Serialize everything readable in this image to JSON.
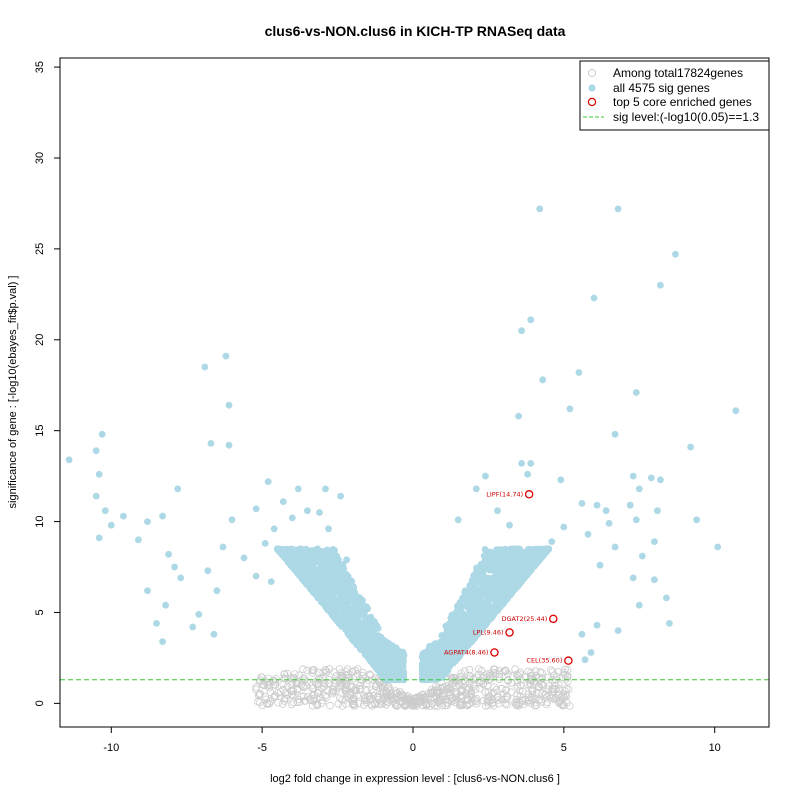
{
  "chart_data": {
    "type": "scatter",
    "title": "clus6-vs-NON.clus6 in KICH-TP RNASeq data",
    "xlabel": "log2 fold change in expression level : [clus6-vs-NON.clus6 ]",
    "ylabel": "significance of gene : [-log10(ebayes_fit$p.val) ]",
    "xlim": [
      -11.7,
      11.8
    ],
    "ylim": [
      -1.3,
      35.5
    ],
    "xticks": [
      -10,
      -5,
      0,
      5,
      10
    ],
    "yticks": [
      0,
      5,
      10,
      15,
      20,
      25,
      30,
      35
    ],
    "grid": false,
    "legend_position": "top-right",
    "legend": [
      {
        "label": "Among total17824genes",
        "marker": "open-circle",
        "color": "#cccccc"
      },
      {
        "label": "all 4575 sig genes",
        "marker": "filled-circle",
        "color": "#add8e6"
      },
      {
        "label": "top 5 core enriched genes",
        "marker": "open-circle",
        "color": "#dd0000"
      },
      {
        "label": "sig level:(-log10(0.05)==1.3",
        "marker": "dashed-line",
        "color": "#33cc33"
      }
    ],
    "sig_level": 1.3,
    "colors": {
      "background_genes": "#cccccc",
      "sig_genes": "#add8e6",
      "top_genes": "#dd0000",
      "sig_line": "#33cc33"
    },
    "background_cloud": {
      "description": "non-significant genes form a V-shaped grey cloud around x=0, y<2",
      "count_drawn": 700
    },
    "sig_points": [
      [
        -11.4,
        13.4
      ],
      [
        -10.5,
        13.9
      ],
      [
        -10.3,
        14.8
      ],
      [
        -10.4,
        12.6
      ],
      [
        -10.5,
        11.4
      ],
      [
        -10.2,
        10.6
      ],
      [
        -10.4,
        9.1
      ],
      [
        -10.0,
        9.8
      ],
      [
        -9.6,
        10.3
      ],
      [
        -9.1,
        9.0
      ],
      [
        -8.8,
        10.0
      ],
      [
        -8.3,
        10.3
      ],
      [
        -7.8,
        11.8
      ],
      [
        -8.1,
        8.2
      ],
      [
        -7.9,
        7.5
      ],
      [
        -7.7,
        6.9
      ],
      [
        -8.8,
        6.2
      ],
      [
        -8.2,
        5.4
      ],
      [
        -8.5,
        4.4
      ],
      [
        -8.3,
        3.4
      ],
      [
        -6.9,
        18.5
      ],
      [
        -6.2,
        19.1
      ],
      [
        -6.1,
        16.4
      ],
      [
        -6.7,
        14.3
      ],
      [
        -6.1,
        14.2
      ],
      [
        -6.0,
        10.1
      ],
      [
        -6.3,
        8.6
      ],
      [
        -6.8,
        7.3
      ],
      [
        -6.5,
        6.2
      ],
      [
        -7.1,
        4.9
      ],
      [
        -6.6,
        3.8
      ],
      [
        -7.3,
        4.2
      ],
      [
        -4.8,
        12.2
      ],
      [
        -4.3,
        11.1
      ],
      [
        -3.8,
        11.8
      ],
      [
        -2.9,
        11.8
      ],
      [
        -2.4,
        11.4
      ],
      [
        -5.2,
        10.7
      ],
      [
        -4.6,
        9.6
      ],
      [
        -4.0,
        10.2
      ],
      [
        -3.5,
        10.6
      ],
      [
        -3.1,
        10.5
      ],
      [
        -2.8,
        9.6
      ],
      [
        -5.6,
        8.0
      ],
      [
        -4.9,
        8.8
      ],
      [
        -4.3,
        8.4
      ],
      [
        -3.9,
        7.9
      ],
      [
        -3.4,
        8.2
      ],
      [
        -2.6,
        8.1
      ],
      [
        -2.2,
        7.9
      ],
      [
        -5.2,
        7.0
      ],
      [
        -4.7,
        6.7
      ],
      [
        -3.0,
        7.3
      ],
      [
        3.8,
        12.6
      ],
      [
        4.2,
        27.2
      ],
      [
        6.8,
        27.2
      ],
      [
        8.7,
        24.7
      ],
      [
        6.0,
        22.3
      ],
      [
        8.2,
        23.0
      ],
      [
        3.9,
        21.1
      ],
      [
        3.6,
        20.5
      ],
      [
        5.5,
        18.2
      ],
      [
        4.3,
        17.8
      ],
      [
        7.4,
        17.1
      ],
      [
        3.5,
        15.8
      ],
      [
        5.2,
        16.2
      ],
      [
        6.7,
        14.8
      ],
      [
        9.2,
        14.1
      ],
      [
        10.7,
        16.1
      ],
      [
        3.6,
        13.2
      ],
      [
        3.9,
        13.2
      ],
      [
        2.4,
        12.5
      ],
      [
        4.9,
        12.3
      ],
      [
        7.3,
        12.5
      ],
      [
        7.9,
        12.4
      ],
      [
        7.5,
        11.8
      ],
      [
        8.2,
        12.3
      ],
      [
        2.1,
        11.8
      ],
      [
        5.6,
        11.0
      ],
      [
        6.1,
        10.9
      ],
      [
        6.4,
        10.6
      ],
      [
        7.2,
        10.9
      ],
      [
        7.4,
        10.1
      ],
      [
        9.4,
        10.1
      ],
      [
        10.1,
        8.6
      ],
      [
        8.1,
        10.6
      ],
      [
        6.5,
        9.9
      ],
      [
        5.8,
        9.3
      ],
      [
        5.0,
        9.7
      ],
      [
        4.6,
        8.9
      ],
      [
        3.2,
        9.8
      ],
      [
        2.8,
        10.6
      ],
      [
        1.5,
        10.1
      ],
      [
        8.0,
        8.9
      ],
      [
        6.7,
        8.6
      ],
      [
        7.6,
        8.1
      ],
      [
        6.2,
        7.6
      ],
      [
        8.4,
        5.8
      ],
      [
        7.5,
        5.4
      ],
      [
        8.5,
        4.4
      ],
      [
        8.0,
        6.8
      ],
      [
        7.3,
        6.9
      ],
      [
        6.1,
        4.3
      ],
      [
        5.6,
        3.8
      ],
      [
        6.8,
        4.0
      ],
      [
        5.7,
        2.4
      ],
      [
        5.9,
        2.8
      ]
    ],
    "sig_cloud": {
      "description": "dense light-blue cloud of significant genes on both sides of x=0",
      "count_drawn": 3400
    },
    "top_genes": [
      {
        "label": "LIPF(14.74)",
        "x": 3.85,
        "y": 11.5
      },
      {
        "label": "DGAT2(25.44)",
        "x": 4.65,
        "y": 4.65
      },
      {
        "label": "LPL(9.46)",
        "x": 3.2,
        "y": 3.9
      },
      {
        "label": "AGPAT4(8.46)",
        "x": 2.7,
        "y": 2.8
      },
      {
        "label": "CEL(35.60)",
        "x": 5.15,
        "y": 2.35
      }
    ]
  }
}
